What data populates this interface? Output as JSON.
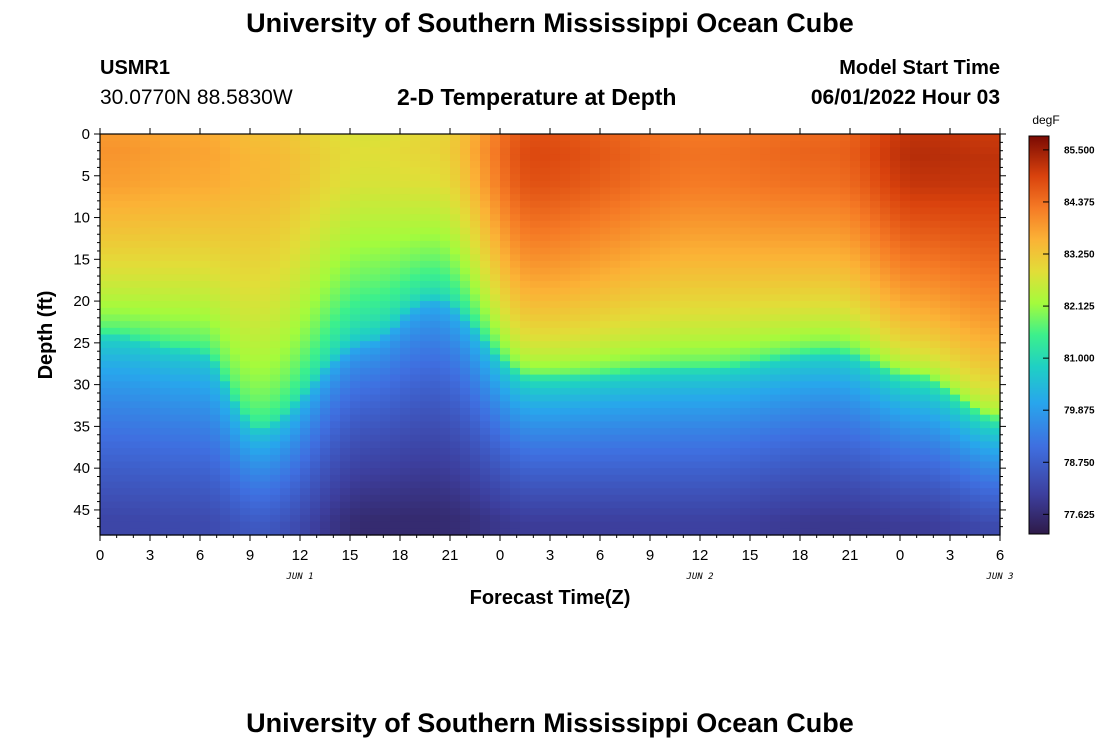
{
  "header": {
    "title": "University of Southern Mississippi Ocean Cube",
    "station": "USMR1",
    "coords": "30.0770N  88.5830W",
    "subtitle": "2-D Temperature at Depth",
    "start_label": "Model Start Time",
    "start_value": "06/01/2022 Hour 03"
  },
  "footer": {
    "title": "University of Southern Mississippi Ocean Cube"
  },
  "chart_data": {
    "type": "heatmap",
    "title": "2-D Temperature at Depth",
    "xlabel": "Forecast Time(Z)",
    "ylabel": "Depth (ft)",
    "x_ticks": [
      "0",
      "3",
      "6",
      "9",
      "12",
      "15",
      "18",
      "21",
      "0",
      "3",
      "6",
      "9",
      "12",
      "15",
      "18",
      "21",
      "0",
      "3",
      "6"
    ],
    "date_labels": [
      {
        "label": "JUN 1",
        "at_hour": 12
      },
      {
        "label": "JUN 2",
        "at_hour": 36
      },
      {
        "label": "JUN 3",
        "at_hour": 54
      }
    ],
    "xlim_hours": [
      0,
      54
    ],
    "y_ticks": [
      "0",
      "5",
      "10",
      "15",
      "20",
      "25",
      "30",
      "35",
      "40",
      "45"
    ],
    "ylim_ft": [
      0,
      48
    ],
    "colorbar": {
      "unit": "degF",
      "labels": [
        "85.500",
        "84.375",
        "83.250",
        "82.125",
        "81.000",
        "79.875",
        "78.750",
        "77.625"
      ],
      "range": [
        77.2,
        85.8
      ],
      "stops": [
        {
          "t": 0.0,
          "color": "#2e1a48"
        },
        {
          "t": 0.1,
          "color": "#3d3f9e"
        },
        {
          "t": 0.22,
          "color": "#3f6fe0"
        },
        {
          "t": 0.33,
          "color": "#28a6ec"
        },
        {
          "t": 0.42,
          "color": "#1fd0c4"
        },
        {
          "t": 0.5,
          "color": "#3cf08c"
        },
        {
          "t": 0.58,
          "color": "#a4fb3c"
        },
        {
          "t": 0.66,
          "color": "#e2dd38"
        },
        {
          "t": 0.74,
          "color": "#fbb236"
        },
        {
          "t": 0.82,
          "color": "#f57a25"
        },
        {
          "t": 0.9,
          "color": "#d9420d"
        },
        {
          "t": 1.0,
          "color": "#7a0a03"
        }
      ]
    },
    "series": {
      "hours": [
        0,
        6,
        9.5,
        16,
        20,
        26,
        36,
        44,
        49,
        54
      ],
      "thermocline_depth_ft": [
        24,
        26,
        35,
        25,
        20,
        29,
        28,
        26,
        29,
        34
      ],
      "surface_temp_degF": [
        84.1,
        83.9,
        83.6,
        83.0,
        83.2,
        85.0,
        84.5,
        84.7,
        85.4,
        85.3
      ],
      "bottom_temp_degF": [
        78.2,
        78.3,
        78.6,
        77.6,
        77.6,
        78.0,
        78.1,
        77.9,
        78.0,
        78.3
      ]
    }
  }
}
